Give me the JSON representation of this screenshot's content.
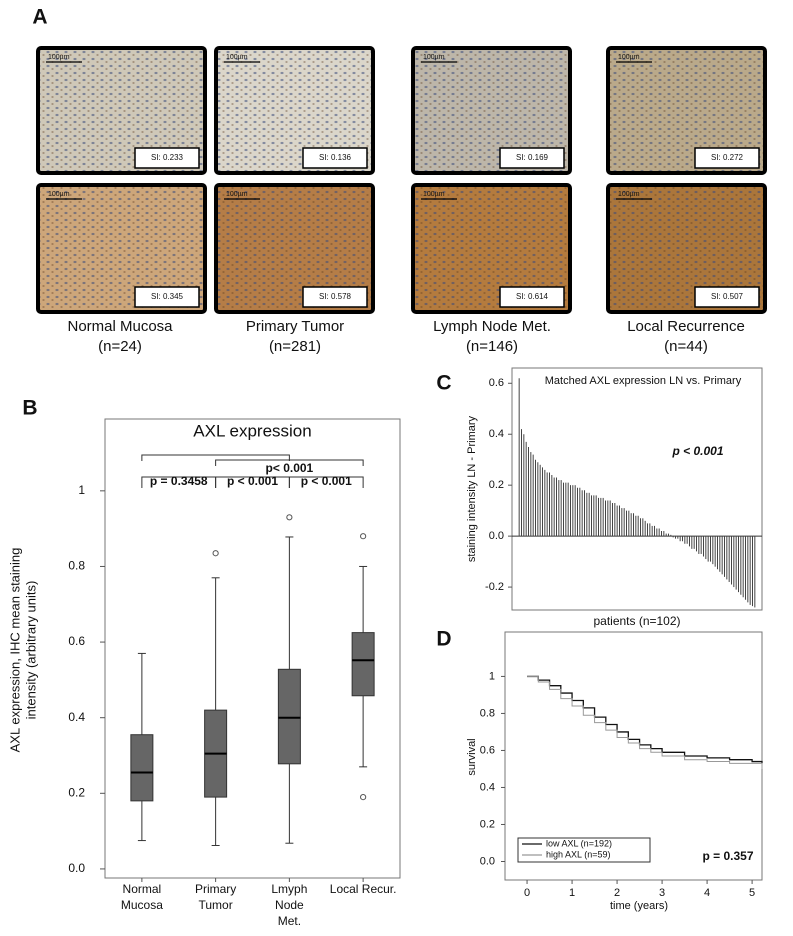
{
  "panel_a": {
    "label": "A",
    "images": [
      {
        "scale": "100µm",
        "si": "SI: 0.233"
      },
      {
        "scale": "100µm",
        "si": "SI: 0.136"
      },
      {
        "scale": "100µm",
        "si": "SI: 0.169"
      },
      {
        "scale": "100µm",
        "si": "SI: 0.272"
      },
      {
        "scale": "100µm",
        "si": "SI: 0.345"
      },
      {
        "scale": "100µm",
        "si": "SI: 0.578"
      },
      {
        "scale": "100µm",
        "si": "SI: 0.614"
      },
      {
        "scale": "100µm",
        "si": "SI: 0.507"
      }
    ],
    "groups": [
      {
        "name": "Normal Mucosa",
        "n": "(n=24)"
      },
      {
        "name": "Primary Tumor",
        "n": "(n=281)"
      },
      {
        "name": "Lymph Node Met.",
        "n": "(n=146)"
      },
      {
        "name": "Local Recurrence",
        "n": "(n=44)"
      }
    ]
  },
  "chart_data": [
    {
      "type": "box",
      "panel_label": "B",
      "title": "AXL expression",
      "y_label": [
        "AXL expression, IHC mean staining",
        "intensity (arbitrary units)"
      ],
      "categories": [
        [
          "Normal",
          "Mucosa"
        ],
        [
          "Primary",
          "Tumor"
        ],
        [
          "Lmyph",
          "Node",
          "Met."
        ],
        [
          "Local Recur."
        ]
      ],
      "boxes": [
        {
          "whislo": 0.075,
          "q1": 0.18,
          "med": 0.255,
          "q3": 0.355,
          "whishi": 0.57,
          "fliers": []
        },
        {
          "whislo": 0.062,
          "q1": 0.19,
          "med": 0.305,
          "q3": 0.42,
          "whishi": 0.77,
          "fliers": [
            0.835
          ]
        },
        {
          "whislo": 0.068,
          "q1": 0.278,
          "med": 0.4,
          "q3": 0.528,
          "whishi": 0.878,
          "fliers": [
            0.93
          ]
        },
        {
          "whislo": 0.27,
          "q1": 0.458,
          "med": 0.552,
          "q3": 0.625,
          "whishi": 0.8,
          "fliers": [
            0.88,
            0.19
          ]
        }
      ],
      "color": "#666666",
      "ylim": [
        -0.024,
        1.19
      ],
      "yticks": [
        {
          "value": 0,
          "label": "0.0"
        },
        0.2,
        0.4,
        0.6,
        0.8,
        1
      ],
      "brackets": [
        {
          "from": 0,
          "to": 1,
          "label": "p = 0.3458"
        },
        {
          "from": 1,
          "to": 2,
          "label": "p < 0.001"
        },
        {
          "from": 2,
          "to": 3,
          "label": "p < 0.001"
        },
        {
          "from": 0,
          "to": 2
        },
        {
          "from": 1,
          "to": 3,
          "label": "p< 0.001"
        }
      ]
    },
    {
      "type": "bar",
      "panel_label": "C",
      "title": "Matched AXL expression LN vs. Primary",
      "annotation": "p < 0.001",
      "y_label": "staining intensity LN - Primary",
      "x_label": "patients (n=102)",
      "values": [
        0.62,
        0.42,
        0.4,
        0.37,
        0.35,
        0.33,
        0.32,
        0.3,
        0.29,
        0.28,
        0.27,
        0.26,
        0.25,
        0.25,
        0.24,
        0.23,
        0.23,
        0.22,
        0.22,
        0.21,
        0.21,
        0.21,
        0.2,
        0.2,
        0.2,
        0.19,
        0.19,
        0.18,
        0.18,
        0.17,
        0.17,
        0.16,
        0.16,
        0.16,
        0.15,
        0.15,
        0.15,
        0.14,
        0.14,
        0.14,
        0.13,
        0.13,
        0.12,
        0.12,
        0.11,
        0.11,
        0.1,
        0.1,
        0.09,
        0.09,
        0.08,
        0.08,
        0.07,
        0.07,
        0.06,
        0.05,
        0.05,
        0.04,
        0.04,
        0.03,
        0.03,
        0.02,
        0.02,
        0.01,
        0.01,
        0.005,
        -0.005,
        -0.01,
        -0.01,
        -0.02,
        -0.02,
        -0.03,
        -0.03,
        -0.04,
        -0.05,
        -0.05,
        -0.06,
        -0.07,
        -0.07,
        -0.08,
        -0.09,
        -0.1,
        -0.1,
        -0.11,
        -0.12,
        -0.13,
        -0.14,
        -0.15,
        -0.16,
        -0.17,
        -0.18,
        -0.19,
        -0.2,
        -0.21,
        -0.22,
        -0.23,
        -0.24,
        -0.25,
        -0.26,
        -0.27,
        -0.275,
        -0.28
      ],
      "color": "#444444",
      "ylim": [
        -0.29,
        0.66
      ],
      "yticks": [
        -0.2,
        {
          "value": 0,
          "label": "0.0"
        },
        0.2,
        0.4,
        0.6
      ]
    },
    {
      "type": "line",
      "panel_label": "D",
      "x_label": "time (years)",
      "y_label": "survival",
      "annotation": "p = 0.357",
      "x": [
        0,
        0.25,
        0.5,
        0.75,
        1,
        1.25,
        1.5,
        1.75,
        2,
        2.25,
        2.5,
        2.75,
        3,
        3.5,
        4,
        4.5,
        5,
        5.22
      ],
      "series": [
        {
          "name": "low AXL (n=192)",
          "color": "#111111",
          "values": [
            1,
            0.98,
            0.95,
            0.91,
            0.87,
            0.83,
            0.78,
            0.74,
            0.7,
            0.66,
            0.63,
            0.61,
            0.59,
            0.57,
            0.56,
            0.55,
            0.54,
            0.53
          ]
        },
        {
          "name": "high AXL (n=59)",
          "color": "#999999",
          "values": [
            1,
            0.97,
            0.93,
            0.88,
            0.84,
            0.79,
            0.75,
            0.71,
            0.67,
            0.64,
            0.61,
            0.59,
            0.57,
            0.55,
            0.54,
            0.53,
            0.53,
            0.5
          ]
        }
      ],
      "step": true,
      "legend": "lower left",
      "xlim": [
        -0.49,
        5.22
      ],
      "xticks": [
        0,
        1,
        2,
        3,
        4,
        5
      ],
      "ylim": [
        -0.1,
        1.24
      ],
      "yticks": [
        {
          "value": 0,
          "label": "0.0"
        },
        0.2,
        0.4,
        0.6,
        0.8,
        1
      ]
    }
  ]
}
